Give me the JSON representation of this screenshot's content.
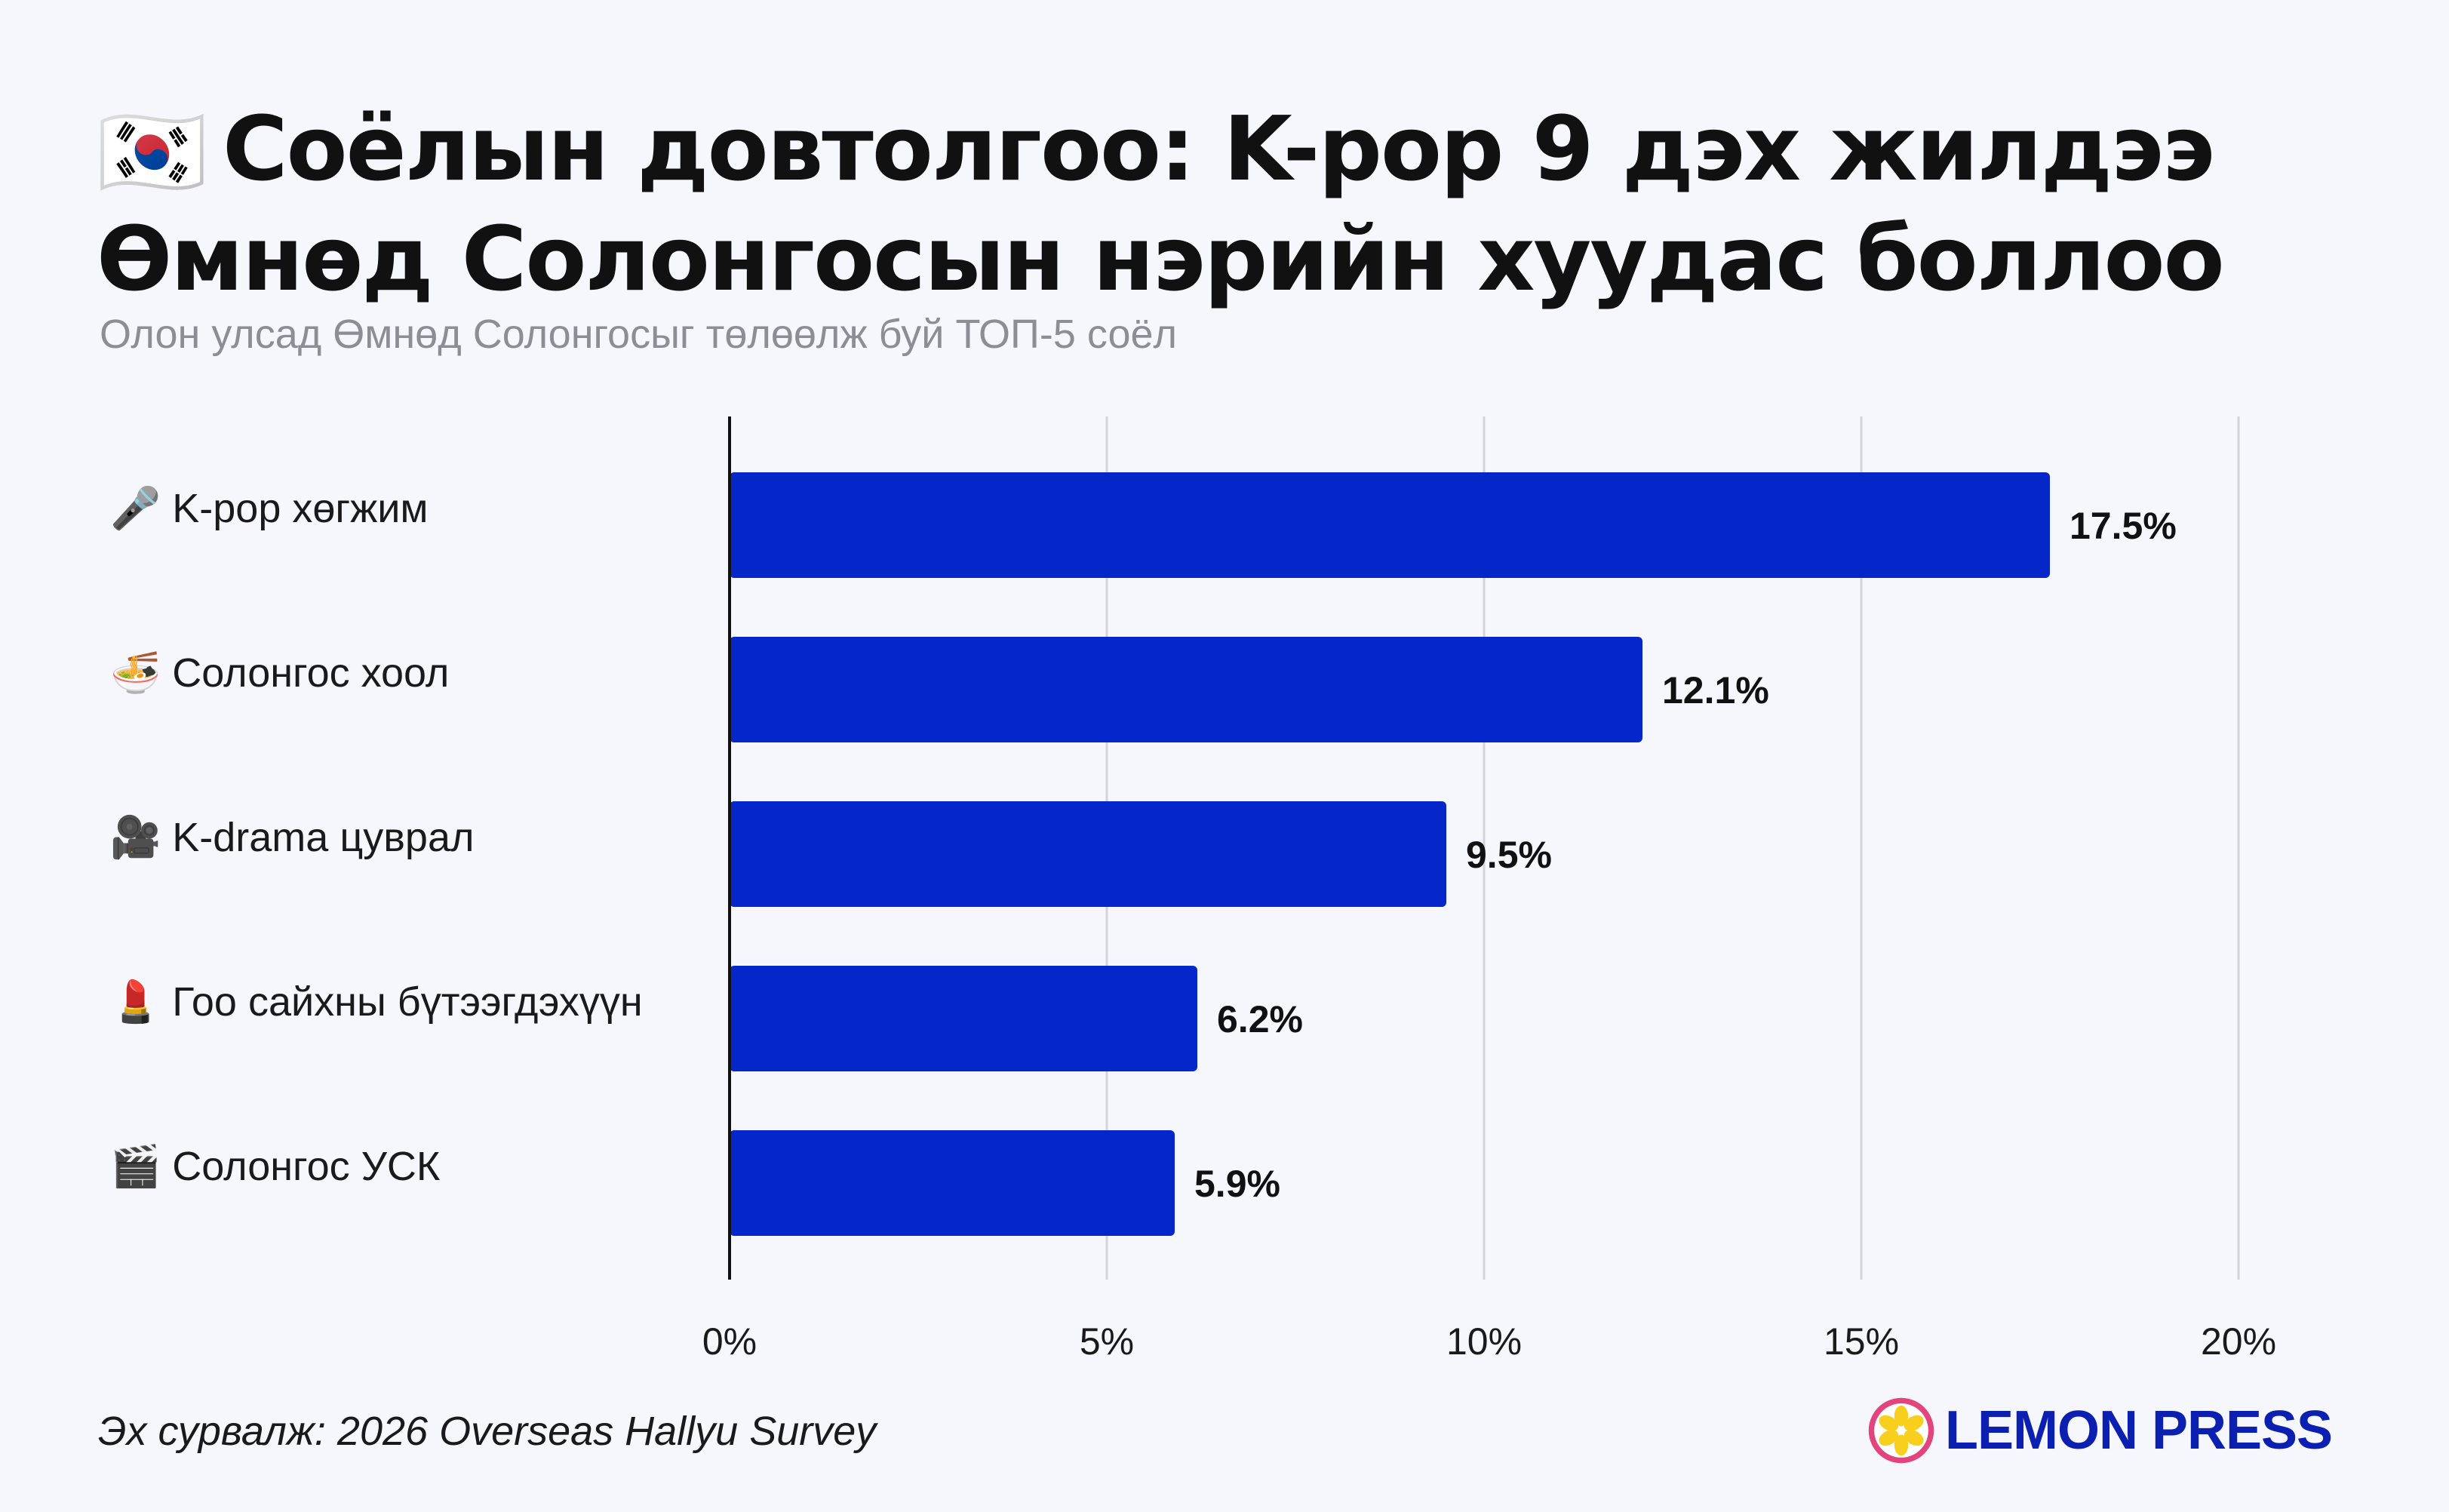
{
  "title": {
    "flag": "🇰🇷",
    "line1": "Соёлын довтолгоо: K-pop 9 дэх жилдээ",
    "line2": "Өмнөд Солонгосын нэрийн хуудас боллоо"
  },
  "subtitle": "Олон улсад Өмнөд Солонгосыг төлөөлж буй ТОП-5 соёл",
  "chart_data": {
    "type": "bar",
    "orientation": "horizontal",
    "categories": [
      "K-pop хөгжим",
      "Солонгос хоол",
      "K-drama цуврал",
      "Гоо сайхны бүтээгдэхүүн",
      "Солонгос УСК"
    ],
    "category_icons": [
      "🎤",
      "🍜",
      "🎥",
      "💄",
      "🎬"
    ],
    "values": [
      17.5,
      12.1,
      9.5,
      6.2,
      5.9
    ],
    "value_labels": [
      "17.5%",
      "12.1%",
      "9.5%",
      "6.2%",
      "5.9%"
    ],
    "xlim": [
      0,
      20
    ],
    "xticks": [
      0,
      5,
      10,
      15,
      20
    ],
    "xtick_labels": [
      "0%",
      "5%",
      "10%",
      "15%",
      "20%"
    ],
    "grid": "vertical",
    "bar_color": "#0527c9",
    "grid_color": "#d3d3d9",
    "axis_color": "#111111"
  },
  "footer": {
    "source": "Эх сурвалж: 2026 Overseas Hallyu Survey",
    "brand": "LEMON PRESS",
    "brand_color": "#0b1fb0"
  }
}
